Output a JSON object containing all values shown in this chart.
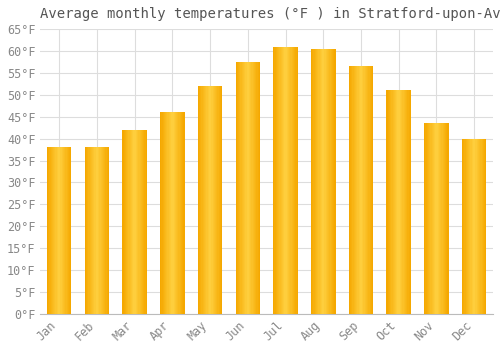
{
  "title": "Average monthly temperatures (°F ) in Stratford-upon-Avon",
  "months": [
    "Jan",
    "Feb",
    "Mar",
    "Apr",
    "May",
    "Jun",
    "Jul",
    "Aug",
    "Sep",
    "Oct",
    "Nov",
    "Dec"
  ],
  "values": [
    38,
    38,
    42,
    46,
    52,
    57.5,
    61,
    60.5,
    56.5,
    51,
    43.5,
    40
  ],
  "bar_color_left": "#F5A800",
  "bar_color_center": "#FFD040",
  "bar_color_right": "#F0A000",
  "background_color": "#FFFFFF",
  "grid_color": "#DDDDDD",
  "text_color": "#888888",
  "title_color": "#555555",
  "ylim": [
    0,
    65
  ],
  "yticks": [
    0,
    5,
    10,
    15,
    20,
    25,
    30,
    35,
    40,
    45,
    50,
    55,
    60,
    65
  ],
  "title_fontsize": 10,
  "tick_fontsize": 8.5,
  "font_family": "monospace"
}
